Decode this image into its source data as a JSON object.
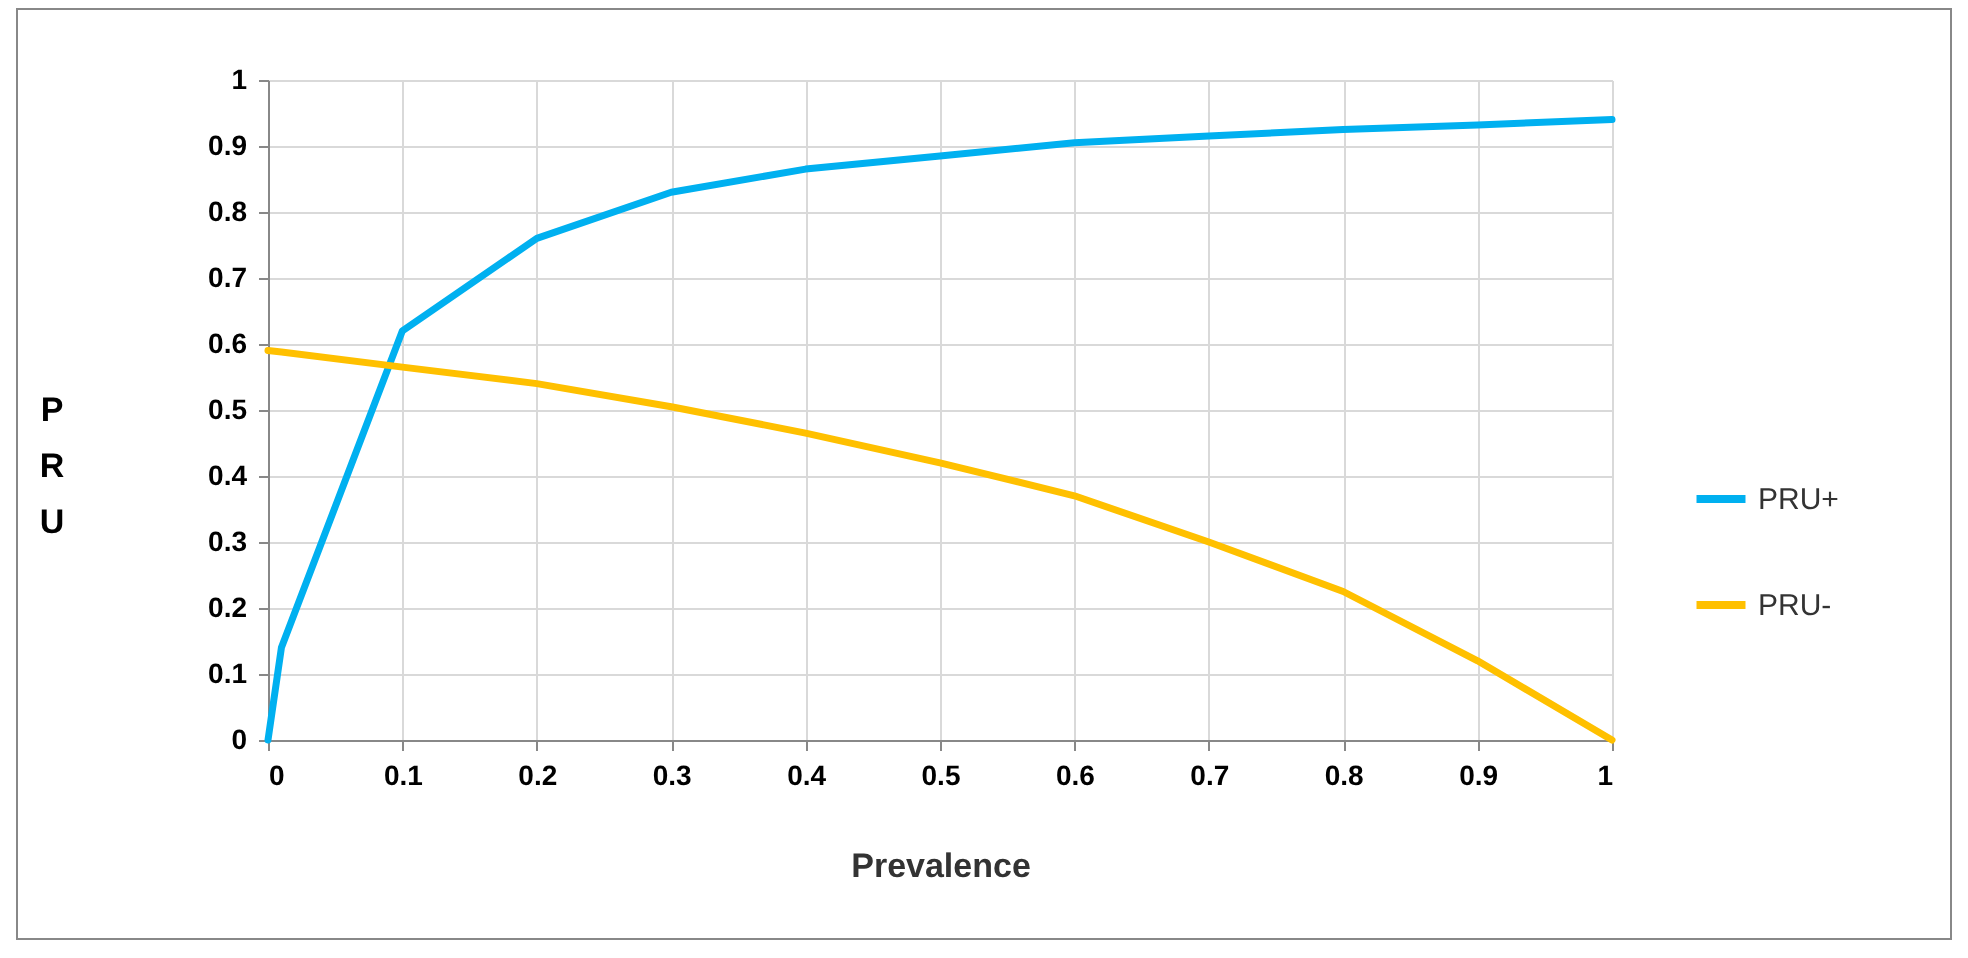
{
  "chart_data": {
    "type": "line",
    "xlabel": "Prevalence",
    "ylabel": "PRU",
    "x": [
      0,
      0.01,
      0.1,
      0.2,
      0.3,
      0.4,
      0.5,
      0.6,
      0.7,
      0.8,
      0.9,
      1
    ],
    "series": [
      {
        "name": "PRU+",
        "color": "#00b0f0",
        "values": [
          0,
          0.14,
          0.62,
          0.76,
          0.83,
          0.865,
          0.885,
          0.905,
          0.915,
          0.925,
          0.932,
          0.94
        ]
      },
      {
        "name": "PRU-",
        "color": "#ffc000",
        "values": [
          0.59,
          0.588,
          0.565,
          0.54,
          0.505,
          0.465,
          0.42,
          0.37,
          0.3,
          0.225,
          0.12,
          0
        ]
      }
    ],
    "xlim": [
      0,
      1
    ],
    "ylim": [
      0,
      1
    ],
    "xticks": [
      0,
      0.1,
      0.2,
      0.3,
      0.4,
      0.5,
      0.6,
      0.7,
      0.8,
      0.9,
      1
    ],
    "yticks": [
      0,
      0.1,
      0.2,
      0.3,
      0.4,
      0.5,
      0.6,
      0.7,
      0.8,
      0.9,
      1
    ],
    "grid": true,
    "legend": "right",
    "marker": "none",
    "line_style": "solid"
  }
}
